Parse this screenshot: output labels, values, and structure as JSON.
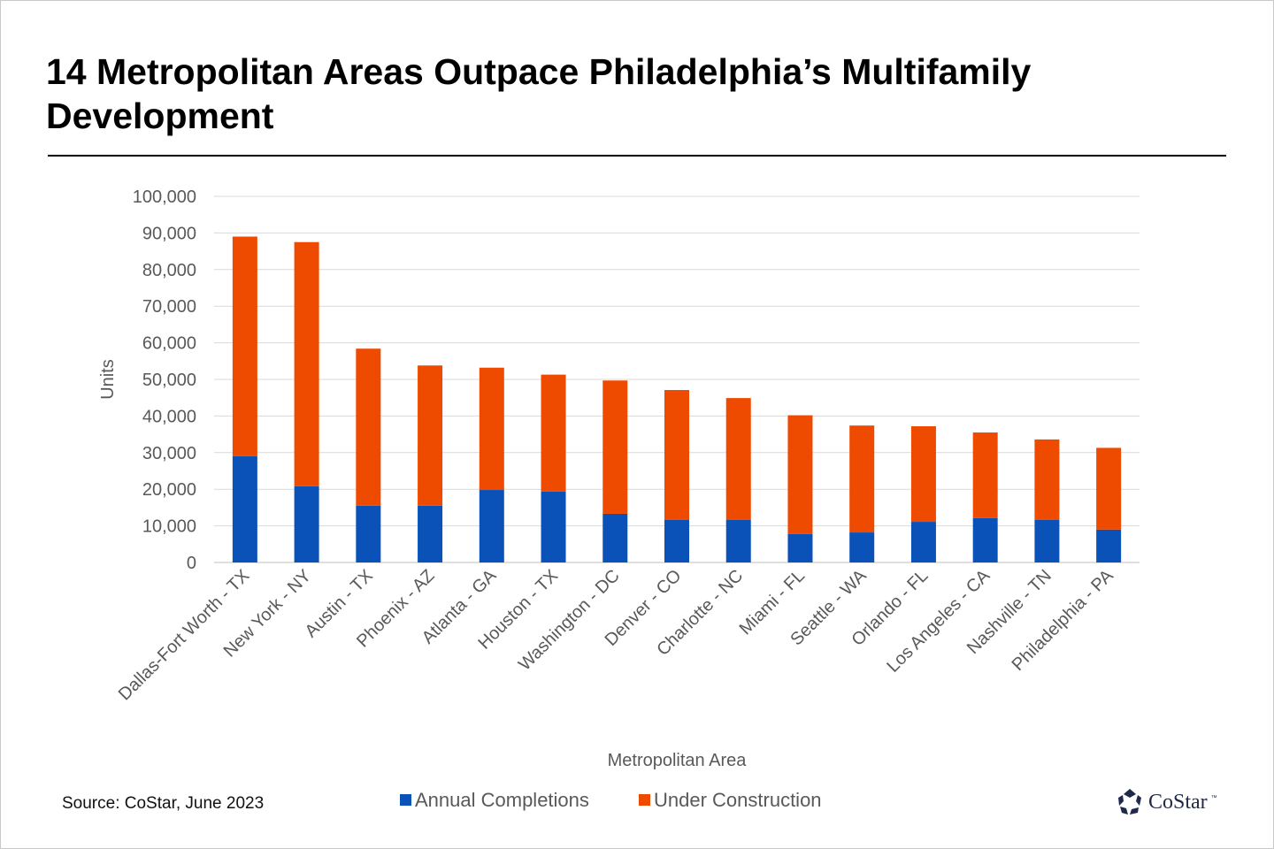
{
  "page": {
    "title": "14 Metropolitan Areas Outpace Philadelphia’s Multifamily Development",
    "source": "Source: CoStar, June 2023",
    "logo_text": "CoStar",
    "logo_tm": "™"
  },
  "chart_data": {
    "type": "bar",
    "stacked": true,
    "title": "14 Metropolitan Areas Outpace Philadelphia’s Multifamily Development",
    "xlabel": "Metropolitan Area",
    "ylabel": "Units",
    "ylim": [
      0,
      100000
    ],
    "yticks": [
      0,
      10000,
      20000,
      30000,
      40000,
      50000,
      60000,
      70000,
      80000,
      90000,
      100000
    ],
    "ytick_labels": [
      "0",
      "10,000",
      "20,000",
      "30,000",
      "40,000",
      "50,000",
      "60,000",
      "70,000",
      "80,000",
      "90,000",
      "100,000"
    ],
    "grid": true,
    "legend_position": "bottom",
    "categories": [
      "Dallas-Fort Worth - TX",
      "New York - NY",
      "Austin - TX",
      "Phoenix - AZ",
      "Atlanta - GA",
      "Houston - TX",
      "Washington - DC",
      "Denver - CO",
      "Charlotte - NC",
      "Miami - FL",
      "Seattle - WA",
      "Orlando - FL",
      "Los Angeles - CA",
      "Nashville - TN",
      "Philadelphia - PA"
    ],
    "series": [
      {
        "name": "Annual Completions",
        "color": "#0b52b8",
        "values": [
          29000,
          20800,
          15500,
          15500,
          19800,
          19400,
          13300,
          11600,
          11600,
          7800,
          8200,
          11100,
          12100,
          11600,
          9000
        ]
      },
      {
        "name": "Under Construction",
        "color": "#ee4a00",
        "values": [
          60000,
          66700,
          42900,
          38300,
          33400,
          31900,
          36400,
          35500,
          33300,
          32400,
          29200,
          26100,
          23400,
          22000,
          22300
        ]
      }
    ]
  }
}
